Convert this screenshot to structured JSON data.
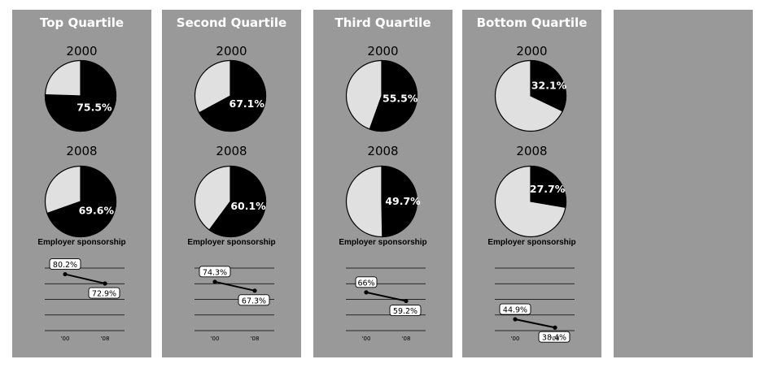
{
  "chart_data": [
    {
      "type": "pie",
      "title": "Top Quartile",
      "pies": [
        {
          "year": "2000",
          "value": 75.5,
          "label": "75.5%"
        },
        {
          "year": "2008",
          "value": 69.6,
          "label": "69.6%"
        }
      ],
      "line": {
        "type": "line",
        "title": "Employer sponsorship",
        "categories": [
          "'00",
          "'08"
        ],
        "values": [
          80.2,
          72.9
        ],
        "labels": [
          "80.2%",
          "72.9%"
        ]
      }
    },
    {
      "type": "pie",
      "title": "Second Quartile",
      "pies": [
        {
          "year": "2000",
          "value": 67.1,
          "label": "67.1%"
        },
        {
          "year": "2008",
          "value": 60.1,
          "label": "60.1%"
        }
      ],
      "line": {
        "type": "line",
        "title": "Employer sponsorship",
        "categories": [
          "'00",
          "'08"
        ],
        "values": [
          74.3,
          67.3
        ],
        "labels": [
          "74.3%",
          "67.3%"
        ]
      }
    },
    {
      "type": "pie",
      "title": "Third Quartile",
      "pies": [
        {
          "year": "2000",
          "value": 55.5,
          "label": "55.5%"
        },
        {
          "year": "2008",
          "value": 49.7,
          "label": "49.7%"
        }
      ],
      "line": {
        "type": "line",
        "title": "Employer sponsorship",
        "categories": [
          "'00",
          "'08"
        ],
        "values": [
          66,
          59.2
        ],
        "labels": [
          "66%",
          "59.2%"
        ]
      }
    },
    {
      "type": "pie",
      "title": "Bottom Quartile",
      "pies": [
        {
          "year": "2000",
          "value": 32.1,
          "label": "32.1%"
        },
        {
          "year": "2008",
          "value": 27.7,
          "label": "27.7%"
        }
      ],
      "line": {
        "type": "line",
        "title": "Employer sponsorship",
        "categories": [
          "'00",
          "'08"
        ],
        "values": [
          44.9,
          38.4
        ],
        "labels": [
          "44.9%",
          "38.4%"
        ]
      }
    }
  ],
  "line_scale": {
    "ylim": [
      36,
      85
    ],
    "gridlines": 5
  },
  "colors": {
    "panel": "#999999",
    "filled": "#000000",
    "remainder": "#e0e0e0",
    "title": "#ffffff"
  }
}
